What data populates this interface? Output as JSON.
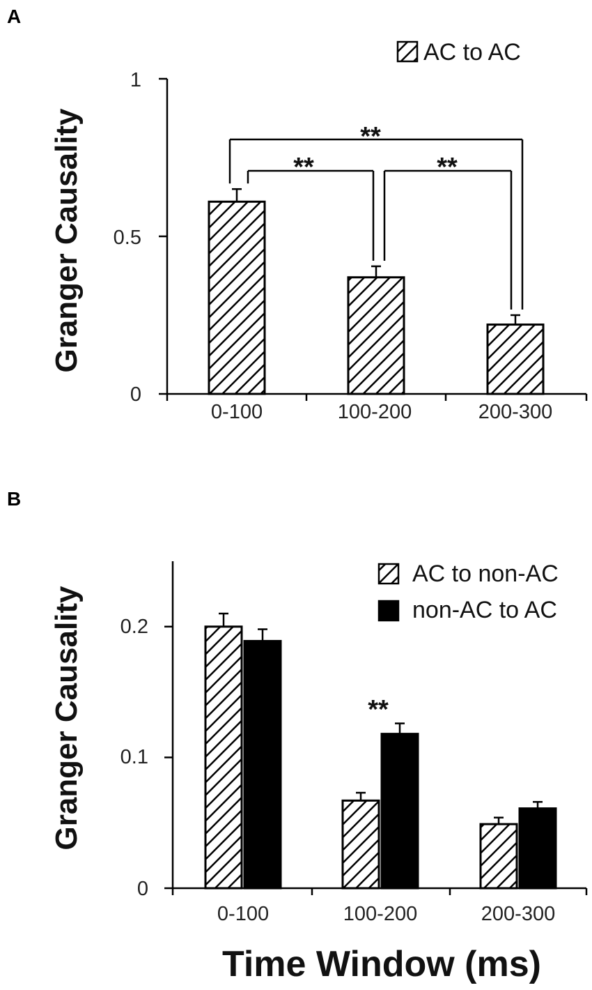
{
  "chart_data": [
    {
      "panel": "A",
      "type": "bar",
      "categories": [
        "0-100",
        "100-200",
        "200-300"
      ],
      "series": [
        {
          "name": "AC to AC",
          "pattern": "hatched",
          "values": [
            0.61,
            0.37,
            0.22
          ],
          "errors": [
            0.04,
            0.035,
            0.03
          ]
        }
      ],
      "ylabel": "Granger Causality",
      "xlabel": "",
      "ylim": [
        0,
        1
      ],
      "yticks": [
        "0",
        "0.5",
        "1"
      ],
      "legend_position": "top-right",
      "significance": [
        {
          "from": "0-100",
          "to": "100-200",
          "label": "**"
        },
        {
          "from": "100-200",
          "to": "200-300",
          "label": "**"
        },
        {
          "from": "0-100",
          "to": "200-300",
          "label": "**"
        }
      ]
    },
    {
      "panel": "B",
      "type": "bar",
      "categories": [
        "0-100",
        "100-200",
        "200-300"
      ],
      "series": [
        {
          "name": "AC to non-AC",
          "pattern": "hatched",
          "values": [
            0.2,
            0.067,
            0.049
          ],
          "errors": [
            0.01,
            0.006,
            0.005
          ]
        },
        {
          "name": "non-AC to AC",
          "pattern": "solid",
          "values": [
            0.189,
            0.118,
            0.061
          ],
          "errors": [
            0.009,
            0.008,
            0.005
          ]
        }
      ],
      "ylabel": "Granger Causality",
      "xlabel": "Time Window (ms)",
      "ylim": [
        0,
        0.25
      ],
      "yticks": [
        "0",
        "0.1",
        "0.2"
      ],
      "legend_position": "top-right",
      "significance": [
        {
          "category": "100-200",
          "label": "**"
        }
      ]
    }
  ],
  "colors": {
    "axis": "#000000",
    "bar_fill": "#000000",
    "hatch_bg": "#ffffff"
  }
}
